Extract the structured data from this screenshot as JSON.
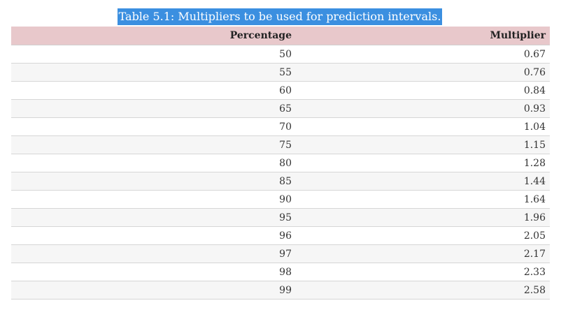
{
  "caption": "Table 5.1: Multipliers to be used for prediction intervals.",
  "table": {
    "headers": [
      "Percentage",
      "Multiplier"
    ],
    "rows": [
      [
        "50",
        "0.67"
      ],
      [
        "55",
        "0.76"
      ],
      [
        "60",
        "0.84"
      ],
      [
        "65",
        "0.93"
      ],
      [
        "70",
        "1.04"
      ],
      [
        "75",
        "1.15"
      ],
      [
        "80",
        "1.28"
      ],
      [
        "85",
        "1.44"
      ],
      [
        "90",
        "1.64"
      ],
      [
        "95",
        "1.96"
      ],
      [
        "96",
        "2.05"
      ],
      [
        "97",
        "2.17"
      ],
      [
        "98",
        "2.33"
      ],
      [
        "99",
        "2.58"
      ]
    ]
  },
  "colors": {
    "caption_highlight": "#3b8fe0",
    "header_background": "#e8c8cb",
    "stripe_background": "#f6f6f6"
  }
}
